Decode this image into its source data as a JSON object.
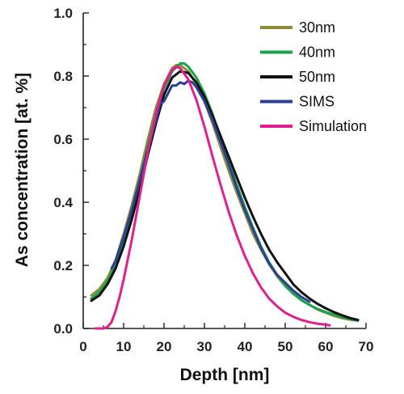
{
  "chart_data": {
    "type": "line",
    "title": "",
    "xlabel": "Depth [nm]",
    "ylabel": "As concentration [at. %]",
    "xlim": [
      0,
      70
    ],
    "ylim": [
      0.0,
      1.0
    ],
    "x_ticks": [
      0,
      10,
      20,
      30,
      40,
      50,
      60,
      70
    ],
    "y_ticks": [
      0.0,
      0.2,
      0.4,
      0.6,
      0.8,
      1.0
    ],
    "x_tick_labels": [
      "0",
      "10",
      "20",
      "30",
      "40",
      "50",
      "60",
      "70"
    ],
    "y_tick_labels": [
      "0.0",
      "0.2",
      "0.4",
      "0.6",
      "0.8",
      "1.0"
    ],
    "grid": false,
    "legend_position": "top-right",
    "series": [
      {
        "name": "30nm",
        "color": "#8c8c3a",
        "x": [
          2,
          4,
          6,
          8,
          10,
          12,
          14,
          16,
          18,
          20,
          22,
          23,
          24,
          26,
          28,
          30,
          32,
          34,
          36,
          38,
          40,
          42,
          44,
          46,
          48,
          50,
          52,
          54,
          56,
          58,
          60,
          62,
          64,
          66,
          68
        ],
        "y": [
          0.105,
          0.125,
          0.16,
          0.215,
          0.3,
          0.39,
          0.49,
          0.6,
          0.7,
          0.775,
          0.825,
          0.835,
          0.835,
          0.815,
          0.775,
          0.72,
          0.65,
          0.575,
          0.5,
          0.43,
          0.365,
          0.3,
          0.25,
          0.205,
          0.165,
          0.135,
          0.11,
          0.09,
          0.075,
          0.06,
          0.05,
          0.04,
          0.033,
          0.028,
          0.025
        ]
      },
      {
        "name": "40nm",
        "color": "#1aa34a",
        "x": [
          2,
          4,
          6,
          8,
          10,
          12,
          14,
          16,
          18,
          20,
          22,
          24,
          25,
          26,
          28,
          30,
          32,
          34,
          36,
          38,
          40,
          42,
          44,
          46,
          48,
          50,
          52,
          54,
          56,
          58,
          60,
          62,
          64,
          66,
          68
        ],
        "y": [
          0.095,
          0.115,
          0.15,
          0.2,
          0.275,
          0.365,
          0.465,
          0.575,
          0.68,
          0.76,
          0.815,
          0.84,
          0.84,
          0.83,
          0.795,
          0.745,
          0.68,
          0.605,
          0.53,
          0.455,
          0.385,
          0.32,
          0.26,
          0.21,
          0.17,
          0.135,
          0.11,
          0.09,
          0.075,
          0.062,
          0.052,
          0.044,
          0.036,
          0.03,
          0.025
        ]
      },
      {
        "name": "50nm",
        "color": "#111111",
        "x": [
          2,
          4,
          6,
          8,
          10,
          12,
          14,
          16,
          18,
          20,
          22,
          24,
          26,
          28,
          30,
          32,
          34,
          36,
          38,
          40,
          42,
          44,
          46,
          48,
          50,
          52,
          54,
          56,
          58,
          60,
          62,
          64,
          66,
          68
        ],
        "y": [
          0.088,
          0.105,
          0.14,
          0.19,
          0.26,
          0.345,
          0.44,
          0.55,
          0.65,
          0.74,
          0.795,
          0.815,
          0.81,
          0.78,
          0.735,
          0.675,
          0.61,
          0.545,
          0.48,
          0.415,
          0.355,
          0.3,
          0.25,
          0.21,
          0.175,
          0.14,
          0.115,
          0.095,
          0.078,
          0.064,
          0.052,
          0.042,
          0.033,
          0.027
        ]
      },
      {
        "name": "SIMS",
        "color": "#2b3f96",
        "x": [
          7,
          8,
          10,
          12,
          14,
          16,
          18,
          19,
          20,
          21,
          22,
          23,
          24,
          25,
          26,
          27,
          28,
          30,
          32,
          34,
          36,
          38,
          40,
          42,
          44,
          46,
          48,
          50,
          52,
          54,
          56
        ],
        "y": [
          0.19,
          0.215,
          0.29,
          0.375,
          0.47,
          0.57,
          0.66,
          0.71,
          0.72,
          0.745,
          0.77,
          0.77,
          0.78,
          0.775,
          0.785,
          0.78,
          0.765,
          0.72,
          0.66,
          0.59,
          0.52,
          0.445,
          0.375,
          0.315,
          0.255,
          0.205,
          0.17,
          0.145,
          0.12,
          0.1,
          0.085
        ]
      },
      {
        "name": "Simulation",
        "color": "#e0208c",
        "x": [
          3,
          5,
          6,
          7,
          8,
          9,
          10,
          12,
          14,
          16,
          18,
          20,
          22,
          23,
          24,
          26,
          28,
          30,
          32,
          34,
          36,
          38,
          40,
          42,
          44,
          46,
          48,
          50,
          52,
          54,
          56,
          58,
          60,
          61
        ],
        "y": [
          0.0,
          0.0,
          0.005,
          0.02,
          0.055,
          0.1,
          0.155,
          0.28,
          0.42,
          0.56,
          0.68,
          0.77,
          0.82,
          0.83,
          0.825,
          0.79,
          0.725,
          0.64,
          0.545,
          0.455,
          0.37,
          0.295,
          0.23,
          0.175,
          0.13,
          0.095,
          0.07,
          0.05,
          0.037,
          0.027,
          0.02,
          0.015,
          0.012,
          0.01
        ]
      }
    ]
  }
}
